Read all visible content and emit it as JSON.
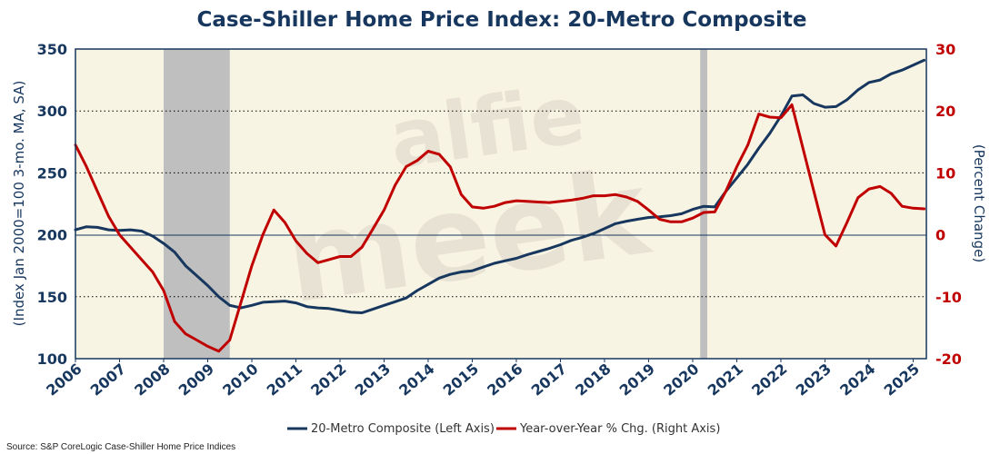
{
  "chart_data": {
    "type": "line",
    "title": "Case-Shiller Home Price Index: 20-Metro Composite",
    "ylabel_left": "(Index Jan 2000=100 3-mo. MA, SA)",
    "ylabel_right": "(Percent Change)",
    "ylim_left": [
      100,
      350
    ],
    "yticks_left": [
      100,
      150,
      200,
      250,
      300,
      350
    ],
    "ylim_right": [
      -20,
      30
    ],
    "yticks_right": [
      -20,
      -10,
      0,
      10,
      20,
      30
    ],
    "xlim": [
      2006,
      2025.3
    ],
    "xticks": [
      2006,
      2007,
      2008,
      2009,
      2010,
      2011,
      2012,
      2013,
      2014,
      2015,
      2016,
      2017,
      2018,
      2019,
      2020,
      2021,
      2022,
      2023,
      2024,
      2025
    ],
    "grid": "horizontal dotted",
    "recessions": [
      [
        2008.0,
        2009.5
      ],
      [
        2020.17,
        2020.33
      ]
    ],
    "series": [
      {
        "name": "20-Metro Composite (Left Axis)",
        "axis": "left",
        "color": "#17375e",
        "x": [
          2006.0,
          2006.25,
          2006.5,
          2006.75,
          2007.0,
          2007.25,
          2007.5,
          2007.75,
          2008.0,
          2008.25,
          2008.5,
          2008.75,
          2009.0,
          2009.25,
          2009.5,
          2009.75,
          2010.0,
          2010.25,
          2010.5,
          2010.75,
          2011.0,
          2011.25,
          2011.5,
          2011.75,
          2012.0,
          2012.25,
          2012.5,
          2012.75,
          2013.0,
          2013.25,
          2013.5,
          2013.75,
          2014.0,
          2014.25,
          2014.5,
          2014.75,
          2015.0,
          2015.25,
          2015.5,
          2015.75,
          2016.0,
          2016.25,
          2016.5,
          2016.75,
          2017.0,
          2017.25,
          2017.5,
          2017.75,
          2018.0,
          2018.25,
          2018.5,
          2018.75,
          2019.0,
          2019.25,
          2019.5,
          2019.75,
          2020.0,
          2020.25,
          2020.5,
          2020.75,
          2021.0,
          2021.25,
          2021.5,
          2021.75,
          2022.0,
          2022.25,
          2022.5,
          2022.75,
          2023.0,
          2023.25,
          2023.5,
          2023.75,
          2024.0,
          2024.25,
          2024.5,
          2024.75,
          2025.0,
          2025.25
        ],
        "values": [
          204,
          206.5,
          206,
          204,
          203.5,
          204,
          203,
          199,
          193,
          186,
          175,
          167,
          159,
          150,
          143,
          141,
          143,
          145.5,
          146,
          146.5,
          145,
          142,
          141,
          140.5,
          139,
          137.5,
          137,
          140,
          143,
          146,
          149,
          155,
          160,
          165,
          168,
          170,
          171,
          174,
          177,
          179,
          181,
          184,
          186.5,
          189,
          192,
          195.5,
          198,
          201,
          205,
          209,
          211,
          212.5,
          214,
          214.5,
          215.5,
          217,
          220.5,
          223,
          222.5,
          235,
          246,
          257,
          270,
          282,
          296,
          312,
          313,
          306,
          303,
          303.5,
          309,
          317,
          323,
          325,
          330,
          333,
          337,
          341
        ]
      },
      {
        "name": "Year-over-Year % Chg. (Right Axis)",
        "axis": "right",
        "color": "#c00000",
        "x": [
          2006.0,
          2006.25,
          2006.5,
          2006.75,
          2007.0,
          2007.25,
          2007.5,
          2007.75,
          2008.0,
          2008.25,
          2008.5,
          2008.75,
          2009.0,
          2009.25,
          2009.5,
          2009.75,
          2010.0,
          2010.25,
          2010.5,
          2010.75,
          2011.0,
          2011.25,
          2011.5,
          2011.75,
          2012.0,
          2012.25,
          2012.5,
          2012.75,
          2013.0,
          2013.25,
          2013.5,
          2013.75,
          2014.0,
          2014.25,
          2014.5,
          2014.75,
          2015.0,
          2015.25,
          2015.5,
          2015.75,
          2016.0,
          2016.25,
          2016.5,
          2016.75,
          2017.0,
          2017.25,
          2017.5,
          2017.75,
          2018.0,
          2018.25,
          2018.5,
          2018.75,
          2019.0,
          2019.25,
          2019.5,
          2019.75,
          2020.0,
          2020.25,
          2020.5,
          2020.75,
          2021.0,
          2021.25,
          2021.5,
          2021.75,
          2022.0,
          2022.25,
          2022.5,
          2022.75,
          2023.0,
          2023.25,
          2023.5,
          2023.75,
          2024.0,
          2024.25,
          2024.5,
          2024.75,
          2025.0,
          2025.25
        ],
        "values": [
          14.5,
          11,
          7,
          3,
          0,
          -2,
          -4,
          -6,
          -9,
          -14,
          -16,
          -17,
          -18,
          -18.8,
          -17,
          -11,
          -5,
          0,
          4,
          2,
          -1,
          -3,
          -4.5,
          -4,
          -3.5,
          -3.5,
          -2,
          1,
          4,
          8,
          11,
          12,
          13.5,
          13,
          11,
          6.5,
          4.5,
          4.3,
          4.6,
          5.2,
          5.5,
          5.4,
          5.3,
          5.2,
          5.4,
          5.6,
          5.9,
          6.3,
          6.3,
          6.5,
          6.1,
          5.4,
          4,
          2.5,
          2.1,
          2.1,
          2.7,
          3.6,
          3.7,
          7,
          11,
          14.5,
          19.5,
          19,
          18.9,
          21,
          14,
          7,
          0,
          -1.8,
          2,
          6,
          7.4,
          7.8,
          6.7,
          4.6,
          4.3,
          4.2
        ]
      }
    ]
  },
  "source": "Source: S&P CoreLogic Case-Shiller Home Price Indices",
  "watermark": "alfie meek",
  "colors": {
    "navy": "#17375e",
    "red": "#c00000",
    "plot_bg": "#f8f4e4",
    "recession": "#bfbfbf"
  }
}
